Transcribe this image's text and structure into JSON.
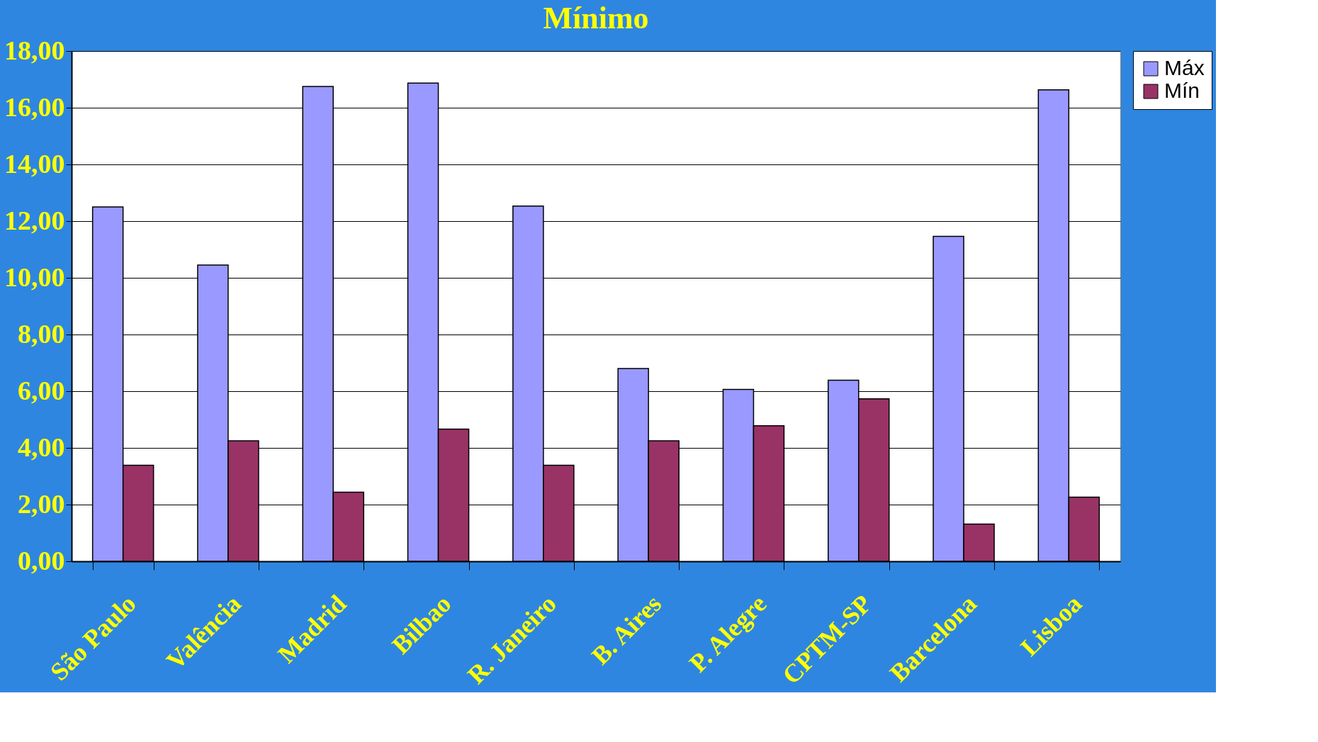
{
  "chart_data": {
    "type": "bar",
    "title": "Mínimo",
    "categories": [
      "São Paulo",
      "Valência",
      "Madrid",
      "Bilbao",
      "R. Janeiro",
      "B. Aires",
      "P. Alegre",
      "CPTM-SP",
      "Barcelona",
      "Lisboa"
    ],
    "series": [
      {
        "name": "Máx",
        "color": "#9999ff",
        "values": [
          12.5,
          10.45,
          16.75,
          16.87,
          12.53,
          6.8,
          6.06,
          6.39,
          11.46,
          16.63
        ]
      },
      {
        "name": "Mín",
        "color": "#993366",
        "values": [
          3.39,
          4.25,
          2.44,
          4.66,
          3.39,
          4.25,
          4.78,
          5.73,
          1.31,
          2.26
        ]
      }
    ],
    "ylim": [
      0,
      18
    ],
    "yticks": [
      {
        "value": 0,
        "label": "0,00"
      },
      {
        "value": 2,
        "label": "2,00"
      },
      {
        "value": 4,
        "label": "4,00"
      },
      {
        "value": 6,
        "label": "6,00"
      },
      {
        "value": 8,
        "label": "8,00"
      },
      {
        "value": 10,
        "label": "10,00"
      },
      {
        "value": 12,
        "label": "12,00"
      },
      {
        "value": 14,
        "label": "14,00"
      },
      {
        "value": 16,
        "label": "16,00"
      },
      {
        "value": 18,
        "label": "18,00"
      }
    ],
    "grid": "y",
    "legend": "right"
  }
}
